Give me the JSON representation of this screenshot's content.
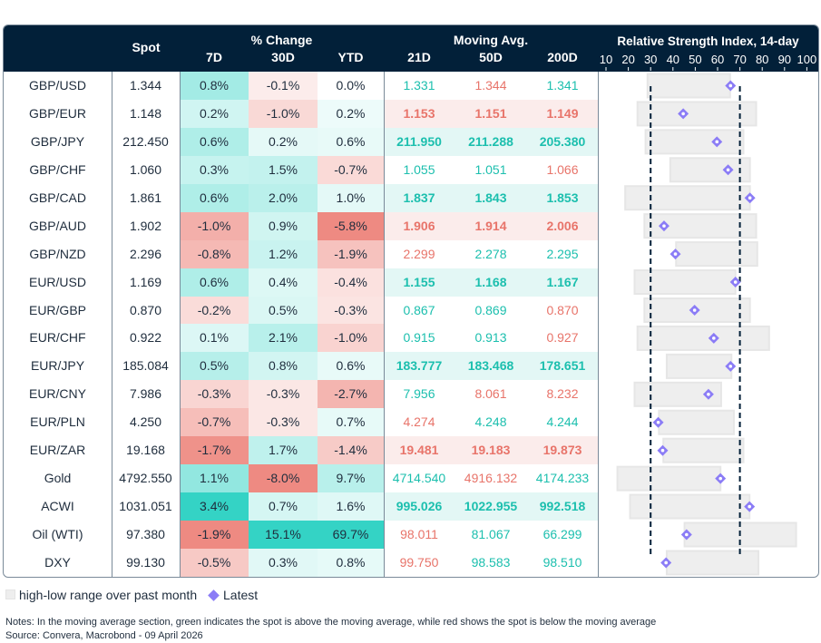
{
  "header": {
    "spot": "Spot",
    "pct_change": "% Change",
    "d7": "7D",
    "d30": "30D",
    "ytd": "YTD",
    "moving_avg": "Moving Avg.",
    "ma21": "21D",
    "ma50": "50D",
    "ma200": "200D",
    "rsi_title": "Relative Strength Index, 14-day",
    "rsi_ticks": [
      "10",
      "20",
      "30",
      "40",
      "50",
      "60",
      "70",
      "80",
      "90",
      "100"
    ]
  },
  "colors": {
    "header_bg": "#022039",
    "positive": "#34d3c5",
    "negative": "#ee8a82",
    "ma_green_text": "#1cbfae",
    "ma_red_text": "#e8746a",
    "ma_green_row": "#e3f7f5",
    "ma_red_row": "#fbeceb",
    "range_bar": "#eeeeee",
    "latest_marker": "#8b7cf6",
    "threshold_line": "#022039"
  },
  "rows": [
    {
      "name": "GBP/USD",
      "spot": "1.344",
      "d7": "0.8%",
      "d30": "-0.1%",
      "ytd": "0.0%",
      "ma21": "1.331",
      "ma50": "1.344",
      "ma200": "1.341"
    },
    {
      "name": "GBP/EUR",
      "spot": "1.148",
      "d7": "0.2%",
      "d30": "-1.0%",
      "ytd": "0.2%",
      "ma21": "1.153",
      "ma50": "1.151",
      "ma200": "1.149"
    },
    {
      "name": "GBP/JPY",
      "spot": "212.450",
      "d7": "0.6%",
      "d30": "0.2%",
      "ytd": "0.6%",
      "ma21": "211.950",
      "ma50": "211.288",
      "ma200": "205.380"
    },
    {
      "name": "GBP/CHF",
      "spot": "1.060",
      "d7": "0.3%",
      "d30": "1.5%",
      "ytd": "-0.7%",
      "ma21": "1.055",
      "ma50": "1.051",
      "ma200": "1.066"
    },
    {
      "name": "GBP/CAD",
      "spot": "1.861",
      "d7": "0.6%",
      "d30": "2.0%",
      "ytd": "1.0%",
      "ma21": "1.837",
      "ma50": "1.843",
      "ma200": "1.853"
    },
    {
      "name": "GBP/AUD",
      "spot": "1.902",
      "d7": "-1.0%",
      "d30": "0.9%",
      "ytd": "-5.8%",
      "ma21": "1.906",
      "ma50": "1.914",
      "ma200": "2.006"
    },
    {
      "name": "GBP/NZD",
      "spot": "2.296",
      "d7": "-0.8%",
      "d30": "1.2%",
      "ytd": "-1.9%",
      "ma21": "2.299",
      "ma50": "2.278",
      "ma200": "2.295"
    },
    {
      "name": "EUR/USD",
      "spot": "1.169",
      "d7": "0.6%",
      "d30": "0.4%",
      "ytd": "-0.4%",
      "ma21": "1.155",
      "ma50": "1.168",
      "ma200": "1.167"
    },
    {
      "name": "EUR/GBP",
      "spot": "0.870",
      "d7": "-0.2%",
      "d30": "0.5%",
      "ytd": "-0.3%",
      "ma21": "0.867",
      "ma50": "0.869",
      "ma200": "0.870"
    },
    {
      "name": "EUR/CHF",
      "spot": "0.922",
      "d7": "0.1%",
      "d30": "2.1%",
      "ytd": "-1.0%",
      "ma21": "0.915",
      "ma50": "0.913",
      "ma200": "0.927"
    },
    {
      "name": "EUR/JPY",
      "spot": "185.084",
      "d7": "0.5%",
      "d30": "0.8%",
      "ytd": "0.6%",
      "ma21": "183.777",
      "ma50": "183.468",
      "ma200": "178.651"
    },
    {
      "name": "EUR/CNY",
      "spot": "7.986",
      "d7": "-0.3%",
      "d30": "-0.3%",
      "ytd": "-2.7%",
      "ma21": "7.956",
      "ma50": "8.061",
      "ma200": "8.232"
    },
    {
      "name": "EUR/PLN",
      "spot": "4.250",
      "d7": "-0.7%",
      "d30": "-0.3%",
      "ytd": "0.7%",
      "ma21": "4.274",
      "ma50": "4.248",
      "ma200": "4.244"
    },
    {
      "name": "EUR/ZAR",
      "spot": "19.168",
      "d7": "-1.7%",
      "d30": "1.7%",
      "ytd": "-1.4%",
      "ma21": "19.481",
      "ma50": "19.183",
      "ma200": "19.873"
    },
    {
      "name": "Gold",
      "spot": "4792.550",
      "d7": "1.1%",
      "d30": "-8.0%",
      "ytd": "9.7%",
      "ma21": "4714.540",
      "ma50": "4916.132",
      "ma200": "4174.233"
    },
    {
      "name": "ACWI",
      "spot": "1031.051",
      "d7": "3.4%",
      "d30": "0.7%",
      "ytd": "1.6%",
      "ma21": "995.026",
      "ma50": "1022.955",
      "ma200": "992.518"
    },
    {
      "name": "Oil (WTI)",
      "spot": "97.380",
      "d7": "-1.9%",
      "d30": "15.1%",
      "ytd": "69.7%",
      "ma21": "98.011",
      "ma50": "81.067",
      "ma200": "66.299"
    },
    {
      "name": "DXY",
      "spot": "99.130",
      "d7": "-0.5%",
      "d30": "0.3%",
      "ytd": "0.8%",
      "ma21": "99.750",
      "ma50": "98.583",
      "ma200": "98.510"
    }
  ],
  "chart_data": {
    "type": "range-dot",
    "title": "Relative Strength Index, 14-day",
    "xlim": [
      10,
      100
    ],
    "x_ticks": [
      10,
      20,
      30,
      40,
      50,
      60,
      70,
      80,
      90,
      100
    ],
    "thresholds": [
      30,
      70
    ],
    "categories": [
      "GBP/USD",
      "GBP/EUR",
      "GBP/JPY",
      "GBP/CHF",
      "GBP/CAD",
      "GBP/AUD",
      "GBP/NZD",
      "EUR/USD",
      "EUR/GBP",
      "EUR/CHF",
      "EUR/JPY",
      "EUR/CNY",
      "EUR/PLN",
      "EUR/ZAR",
      "Gold",
      "ACWI",
      "Oil (WTI)",
      "DXY"
    ],
    "series": [
      {
        "name": "high-low range over past month",
        "low": [
          28.6,
          24.1,
          27.7,
          38.8,
          18.6,
          27.2,
          41.4,
          22.8,
          27.2,
          24.1,
          37.2,
          22.8,
          33.7,
          35.7,
          15.1,
          20.8,
          45.2,
          37.2
        ],
        "high": [
          65.6,
          77.3,
          71.6,
          74.5,
          74.5,
          77.3,
          77.8,
          68.0,
          74.5,
          83.1,
          66.2,
          61.6,
          67.3,
          71.6,
          61.3,
          74.3,
          95.2,
          78.3
        ]
      },
      {
        "name": "Latest",
        "values": [
          65.8,
          44.6,
          59.7,
          64.7,
          74.5,
          36.0,
          41.1,
          68.0,
          49.7,
          58.3,
          65.8,
          55.9,
          33.4,
          35.4,
          61.3,
          74.3,
          46.1,
          36.9
        ]
      }
    ]
  },
  "legend": {
    "range_label": "high-low range over past month",
    "latest_label": "Latest"
  },
  "notes": "Notes: In the moving average section, green indicates the spot is above the moving average, while red shows the spot is below the moving average",
  "source": "Source: Convera, Macrobond - 09 April 2026"
}
